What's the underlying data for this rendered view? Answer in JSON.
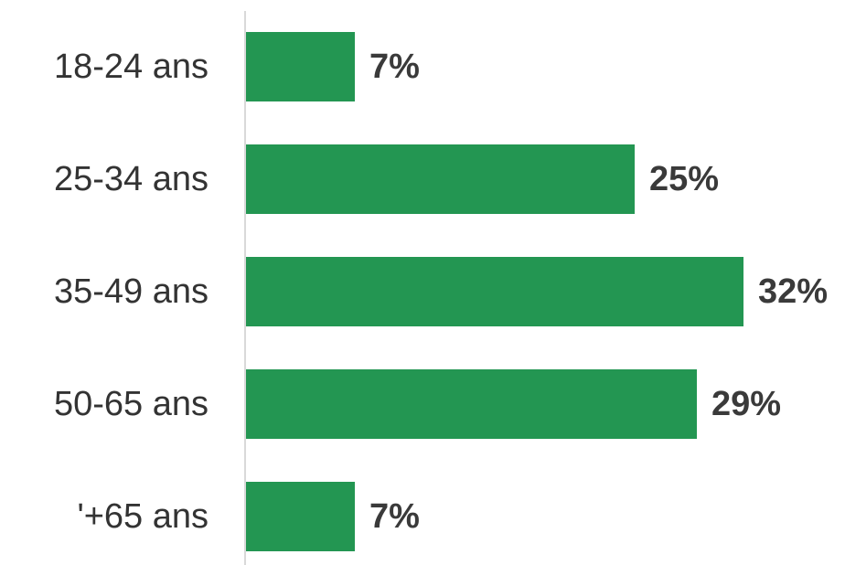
{
  "chart_data": {
    "type": "bar",
    "orientation": "horizontal",
    "categories": [
      "18-24 ans",
      "25-34 ans",
      "35-49 ans",
      "50-65 ans",
      "'+65 ans"
    ],
    "values": [
      7,
      25,
      32,
      29,
      7
    ],
    "value_labels": [
      "7%",
      "25%",
      "32%",
      "29%",
      "7%"
    ],
    "xlim": [
      0,
      32
    ],
    "grid": false,
    "legend": "none",
    "bar_color": "#239652",
    "axis_color": "#d9d9d9",
    "label_color": "#333333",
    "value_label_color": "#3a3a3a"
  }
}
